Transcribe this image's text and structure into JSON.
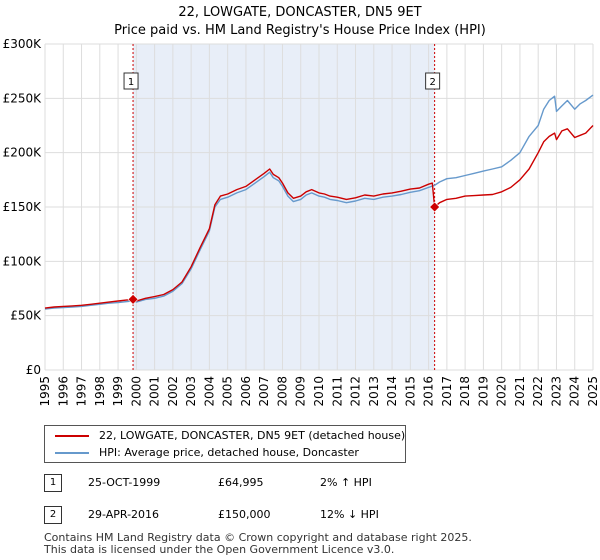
{
  "title_line1": "22, LOWGATE, DONCASTER, DN5 9ET",
  "title_line2": "Price paid vs. HM Land Registry's House Price Index (HPI)",
  "colors": {
    "property": "#cc0000",
    "hpi": "#6699cc",
    "highlight": "#e8eef8",
    "grid": "#dddddd",
    "marker_line": "#cc0000"
  },
  "chart_data": {
    "type": "line",
    "xlim": [
      1995,
      2025
    ],
    "ylim": [
      0,
      300000
    ],
    "y_ticks": [
      0,
      50000,
      100000,
      150000,
      200000,
      250000,
      300000
    ],
    "y_tick_labels": [
      "£0",
      "£50K",
      "£100K",
      "£150K",
      "£200K",
      "£250K",
      "£300K"
    ],
    "x_ticks": [
      1995,
      1996,
      1997,
      1998,
      1999,
      2000,
      2001,
      2002,
      2003,
      2004,
      2005,
      2006,
      2007,
      2008,
      2009,
      2010,
      2011,
      2012,
      2013,
      2014,
      2015,
      2016,
      2017,
      2018,
      2019,
      2020,
      2021,
      2022,
      2023,
      2024,
      2025
    ],
    "x_tick_labels": [
      "1995",
      "1996",
      "1997",
      "1998",
      "1999",
      "2000",
      "2001",
      "2002",
      "2003",
      "2004",
      "2005",
      "2006",
      "2007",
      "2008",
      "2009",
      "2010",
      "2011",
      "2012",
      "2013",
      "2014",
      "2015",
      "2016",
      "2017",
      "2018",
      "2019",
      "2020",
      "2021",
      "2022",
      "2023",
      "2024",
      "2025"
    ],
    "highlight_range": [
      1999.82,
      2016.33
    ],
    "series": [
      {
        "name": "22, LOWGATE, DONCASTER, DN5 9ET (detached house)",
        "color": "#cc0000",
        "x": [
          1995,
          1995.5,
          1996,
          1996.5,
          1997,
          1997.5,
          1998,
          1998.5,
          1999,
          1999.5,
          1999.82,
          2000,
          2000.5,
          2001,
          2001.5,
          2002,
          2002.5,
          2003,
          2003.5,
          2004,
          2004.3,
          2004.6,
          2005,
          2005.5,
          2006,
          2006.5,
          2007,
          2007.3,
          2007.5,
          2007.8,
          2008,
          2008.3,
          2008.6,
          2009,
          2009.3,
          2009.6,
          2010,
          2010.3,
          2010.6,
          2011,
          2011.5,
          2012,
          2012.5,
          2013,
          2013.5,
          2014,
          2014.5,
          2015,
          2015.5,
          2016,
          2016.2,
          2016.33,
          2016.6,
          2017,
          2017.5,
          2018,
          2018.5,
          2019,
          2019.5,
          2020,
          2020.5,
          2021,
          2021.5,
          2022,
          2022.3,
          2022.6,
          2022.9,
          2023,
          2023.3,
          2023.6,
          2024,
          2024.3,
          2024.6,
          2025
        ],
        "y": [
          57000,
          58000,
          58500,
          59000,
          59500,
          60500,
          61500,
          62500,
          63500,
          64500,
          64995,
          63500,
          66000,
          67500,
          69500,
          74000,
          81000,
          95000,
          113000,
          130000,
          152000,
          160000,
          162000,
          166000,
          169000,
          175000,
          181000,
          185000,
          180000,
          177000,
          172000,
          163000,
          158000,
          160000,
          164000,
          166000,
          163000,
          162000,
          160000,
          159000,
          157000,
          158500,
          161000,
          160000,
          162000,
          163000,
          164500,
          166500,
          167500,
          171000,
          172000,
          150000,
          154000,
          157000,
          158000,
          160000,
          160500,
          161000,
          161500,
          164000,
          168000,
          175000,
          185000,
          200000,
          210000,
          215000,
          218000,
          212000,
          220000,
          222000,
          214000,
          216000,
          218000,
          225000
        ]
      },
      {
        "name": "HPI: Average price, detached house, Doncaster",
        "color": "#6699cc",
        "x": [
          1995,
          1995.5,
          1996,
          1996.5,
          1997,
          1997.5,
          1998,
          1998.5,
          1999,
          1999.5,
          1999.82,
          2000,
          2000.5,
          2001,
          2001.5,
          2002,
          2002.5,
          2003,
          2003.5,
          2004,
          2004.3,
          2004.6,
          2005,
          2005.5,
          2006,
          2006.5,
          2007,
          2007.3,
          2007.5,
          2007.8,
          2008,
          2008.3,
          2008.6,
          2009,
          2009.3,
          2009.6,
          2010,
          2010.3,
          2010.6,
          2011,
          2011.5,
          2012,
          2012.5,
          2013,
          2013.5,
          2014,
          2014.5,
          2015,
          2015.5,
          2016,
          2016.33,
          2016.6,
          2017,
          2017.5,
          2018,
          2018.5,
          2019,
          2019.5,
          2020,
          2020.5,
          2021,
          2021.5,
          2022,
          2022.3,
          2022.6,
          2022.9,
          2023,
          2023.3,
          2023.6,
          2024,
          2024.3,
          2024.6,
          2025
        ],
        "y": [
          56000,
          57000,
          57500,
          58000,
          58500,
          59500,
          60500,
          61500,
          62000,
          63000,
          63600,
          62500,
          65000,
          66000,
          68000,
          72500,
          79500,
          93000,
          111000,
          128000,
          150000,
          157000,
          159000,
          163000,
          166000,
          172000,
          178000,
          182000,
          177000,
          174000,
          169000,
          160000,
          155000,
          157000,
          161000,
          163000,
          160000,
          159000,
          157000,
          156000,
          154000,
          155500,
          158000,
          157000,
          159000,
          160000,
          161500,
          163500,
          165000,
          168000,
          170000,
          173000,
          176000,
          177000,
          179000,
          181000,
          183000,
          185000,
          187000,
          193000,
          200000,
          215000,
          225000,
          240000,
          248000,
          252000,
          238000,
          243000,
          248000,
          240000,
          245000,
          248000,
          253000
        ]
      }
    ],
    "markers": [
      {
        "label": "1",
        "x": 1999.82,
        "y": 64995
      },
      {
        "label": "2",
        "x": 2016.33,
        "y": 150000
      }
    ]
  },
  "legend": {
    "property_label": "22, LOWGATE, DONCASTER, DN5 9ET (detached house)",
    "hpi_label": "HPI: Average price, detached house, Doncaster"
  },
  "transactions": [
    {
      "num": "1",
      "date": "25-OCT-1999",
      "price": "£64,995",
      "hpi": "2% ↑ HPI"
    },
    {
      "num": "2",
      "date": "29-APR-2016",
      "price": "£150,000",
      "hpi": "12% ↓ HPI"
    }
  ],
  "footer_line1": "Contains HM Land Registry data © Crown copyright and database right 2025.",
  "footer_line2": "This data is licensed under the Open Government Licence v3.0."
}
